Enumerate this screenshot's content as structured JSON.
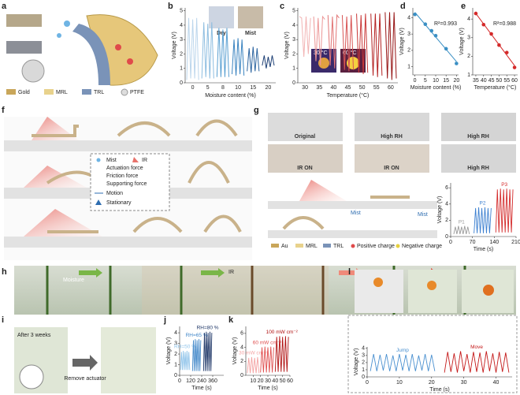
{
  "panel_letters": [
    "a",
    "b",
    "c",
    "d",
    "e",
    "f",
    "g",
    "h",
    "i",
    "j",
    "k",
    "l"
  ],
  "a": {
    "legend": [
      "Gold",
      "MRL",
      "TRL",
      "PTFE"
    ]
  },
  "b_photos": [
    "Dry",
    "Mist"
  ],
  "c_photos": [
    "30 °C",
    "60 °C"
  ],
  "f": {
    "legend": [
      "Mist",
      "IR",
      "Actuation force",
      "Friction force",
      "Supporting force",
      "Motion",
      "Stationary"
    ]
  },
  "g": {
    "photos": [
      "Original",
      "High RH",
      "High RH",
      "IR ON",
      "IR ON",
      "High RH"
    ],
    "mist": [
      "Mist",
      "Mist"
    ],
    "legend": [
      "Au",
      "MRL",
      "TRL",
      "Positive charge",
      "Negative charge"
    ]
  },
  "h": {
    "labels": [
      "Moisture",
      "IR"
    ]
  },
  "i": {
    "labels": [
      "After 3 weeks",
      "Remove actuator"
    ]
  },
  "chart_data": [
    {
      "type": "line",
      "ylabel": "Voltage (V)",
      "xlabel": "Moisture content (%)",
      "categories": [
        "0",
        "5",
        "8",
        "10",
        "15",
        "20"
      ],
      "groups": [
        [
          0.2,
          4.5,
          0.3,
          4.4,
          0.3,
          4.5,
          0.2
        ],
        [
          0.3,
          4.2,
          0.4,
          4.1,
          0.3,
          4.2,
          0.3
        ],
        [
          0.4,
          3.8,
          0.4,
          3.7,
          0.4,
          3.8,
          0.4
        ],
        [
          0.6,
          3.0,
          0.5,
          3.1,
          0.6,
          3.0,
          0.5
        ],
        [
          0.8,
          2.4,
          0.7,
          2.5,
          0.8,
          2.4,
          0.8
        ],
        [
          1.2,
          1.9,
          1.0,
          1.8,
          1.1,
          1.9,
          1.2
        ]
      ],
      "group_colors": [
        "#bcd6ec",
        "#8dbde0",
        "#5aa0d2",
        "#3b84c0",
        "#2b64a0",
        "#1d3f75"
      ],
      "ylim": [
        0,
        5.2
      ],
      "yticks": [
        0,
        1,
        2,
        3,
        4,
        5
      ]
    },
    {
      "type": "line",
      "ylabel": "Voltage (V)",
      "xlabel": "Temperature (°C)",
      "categories": [
        "30",
        "35",
        "40",
        "45",
        "50",
        "55",
        "60"
      ],
      "groups": [
        [
          4.6,
          4.5,
          1.8,
          4.6,
          2.0,
          4.5
        ],
        [
          4.6,
          1.5,
          4.5,
          1.2,
          4.6,
          4.4
        ],
        [
          4.7,
          1.2,
          4.6,
          1.0,
          4.7,
          4.5
        ],
        [
          4.7,
          0.9,
          4.6,
          0.8,
          4.7,
          0.9
        ],
        [
          4.8,
          0.7,
          4.7,
          0.6,
          4.8,
          0.7
        ],
        [
          4.8,
          0.5,
          4.8,
          0.4,
          4.8,
          0.5
        ],
        [
          4.9,
          0.3,
          4.9,
          0.2,
          4.9,
          0.3
        ]
      ],
      "group_colors": [
        "#f2b3b3",
        "#ec9696",
        "#e27676",
        "#d85555",
        "#c93838",
        "#b42222",
        "#961414"
      ],
      "ylim": [
        0,
        5.2
      ],
      "yticks": [
        0,
        1,
        2,
        3,
        4,
        5
      ]
    },
    {
      "type": "scatter",
      "ylabel": "Voltage (V)",
      "xlabel": "Moisture content (%)",
      "annotation": "R²=0.993",
      "x": [
        0,
        5,
        8,
        10,
        15,
        20
      ],
      "values": [
        4.2,
        3.6,
        3.2,
        2.9,
        2.1,
        1.2
      ],
      "color": "#3a8fc4",
      "xlim": [
        -1,
        21
      ],
      "xticks": [
        0,
        5,
        10,
        15,
        20
      ],
      "ylim": [
        0.5,
        4.6
      ],
      "yticks": [
        1,
        2,
        3,
        4
      ]
    },
    {
      "type": "scatter",
      "ylabel": "Voltage (V)",
      "xlabel": "Temperature (°C)",
      "annotation": "R²=0.988",
      "x": [
        35,
        40,
        45,
        50,
        55,
        60
      ],
      "values": [
        4.3,
        3.7,
        3.2,
        2.6,
        2.2,
        1.4
      ],
      "color": "#d42a2a",
      "xlim": [
        33,
        62
      ],
      "xticks": [
        35,
        40,
        45,
        50,
        55,
        60
      ],
      "ylim": [
        1,
        4.6
      ],
      "yticks": [
        1,
        2,
        3,
        4
      ]
    },
    {
      "type": "line",
      "ylabel": "Voltage (V)",
      "xlabel": "Time (s)",
      "series": [
        {
          "name": "P1",
          "color": "#9a9a9a",
          "x": [
            10,
            15,
            20,
            25,
            30,
            35,
            40,
            45,
            50,
            55,
            60
          ],
          "values": [
            0.3,
            1.2,
            0.3,
            1.3,
            0.3,
            1.2,
            0.3,
            1.3,
            0.3,
            1.2,
            0.3
          ]
        },
        {
          "name": "P2",
          "color": "#3b7fd0",
          "x": [
            75,
            80,
            85,
            90,
            95,
            100,
            105,
            110,
            115,
            120,
            125,
            130
          ],
          "values": [
            0.4,
            3.5,
            0.4,
            3.6,
            0.4,
            3.5,
            0.4,
            3.6,
            0.4,
            3.5,
            0.4,
            3.5
          ]
        },
        {
          "name": "P3",
          "color": "#d42a2a",
          "x": [
            145,
            150,
            155,
            160,
            165,
            170,
            175,
            180,
            185,
            190,
            195,
            200
          ],
          "values": [
            0.5,
            5.8,
            0.5,
            5.9,
            0.5,
            5.8,
            0.5,
            5.9,
            0.5,
            5.8,
            0.5,
            5.8
          ]
        }
      ],
      "xlim": [
        0,
        210
      ],
      "xticks": [
        0,
        70,
        140,
        210
      ],
      "ylim": [
        0,
        6.6
      ],
      "yticks": [
        0,
        2,
        4,
        6
      ]
    },
    {
      "type": "line",
      "ylabel": "Voltage (V)",
      "xlabel": "Time (s)",
      "series": [
        {
          "name": "RH=50 %",
          "color": "#8ec3ea",
          "x": [
            10,
            20,
            30,
            40,
            50,
            60,
            70,
            80,
            90,
            100,
            110
          ],
          "values": [
            0.5,
            2.2,
            0.5,
            2.3,
            0.5,
            2.2,
            0.5,
            2.3,
            0.5,
            2.2,
            0.5
          ]
        },
        {
          "name": "RH=65 %",
          "color": "#3f86c8",
          "x": [
            140,
            150,
            160,
            170,
            180,
            190,
            200,
            210,
            220,
            230
          ],
          "values": [
            0.4,
            3.3,
            0.4,
            3.4,
            0.4,
            3.3,
            0.4,
            3.4,
            0.4,
            3.3
          ]
        },
        {
          "name": "RH=80 %",
          "color": "#1d3566",
          "x": [
            260,
            270,
            280,
            290,
            300,
            310,
            320,
            330,
            340,
            350
          ],
          "values": [
            0.4,
            4.0,
            0.4,
            4.1,
            0.4,
            4.0,
            0.4,
            4.1,
            0.4,
            4.0
          ]
        }
      ],
      "xlim": [
        0,
        480
      ],
      "xticks": [
        0,
        120,
        240,
        360
      ],
      "ylim": [
        0,
        4.6
      ],
      "yticks": [
        0,
        1,
        2,
        3,
        4
      ]
    },
    {
      "type": "line",
      "ylabel": "Voltage (V)",
      "xlabel": "Time (s)",
      "series": [
        {
          "name": "30 mW cm⁻²",
          "color": "#f4a3a3",
          "x": [
            2,
            4,
            6,
            8,
            10,
            12,
            14,
            16,
            18
          ],
          "values": [
            0.3,
            2.5,
            0.3,
            2.6,
            0.3,
            2.5,
            0.3,
            2.6,
            0.3
          ]
        },
        {
          "name": "60 mW cm⁻²",
          "color": "#e05050",
          "x": [
            20,
            22,
            24,
            26,
            28,
            30,
            32,
            34,
            36,
            38
          ],
          "values": [
            0.4,
            4.0,
            0.4,
            4.1,
            0.4,
            4.0,
            0.4,
            4.1,
            0.4,
            4.0
          ]
        },
        {
          "name": "100 mW cm⁻²",
          "color": "#b01010",
          "x": [
            40,
            42,
            44,
            46,
            48,
            50,
            52,
            54,
            56,
            58
          ],
          "values": [
            0.5,
            5.5,
            0.5,
            5.6,
            0.5,
            5.5,
            0.5,
            5.6,
            0.5,
            5.5
          ]
        }
      ],
      "xlim": [
        0,
        60
      ],
      "xticks": [
        10,
        20,
        30,
        40,
        50,
        60
      ],
      "ylim": [
        0,
        7
      ],
      "yticks": [
        0,
        2,
        4,
        6
      ]
    },
    {
      "type": "line",
      "ylabel": "Voltage (V)",
      "xlabel": "Time (s)",
      "series": [
        {
          "name": "Jump",
          "color": "#4a90d0",
          "x": [
            1,
            2,
            3,
            4,
            5,
            6,
            7,
            8,
            9,
            10,
            11,
            12,
            13,
            14,
            15,
            16,
            17,
            18,
            19,
            20,
            21
          ],
          "values": [
            0.8,
            3.2,
            0.8,
            3.1,
            0.9,
            3.2,
            0.8,
            3.0,
            0.8,
            3.2,
            0.9,
            3.1,
            0.8,
            3.2,
            0.8,
            3.0,
            0.9,
            3.2,
            0.8,
            3.1,
            0.8
          ]
        },
        {
          "name": "Move",
          "color": "#c41818",
          "x": [
            24,
            25,
            26,
            27,
            28,
            29,
            30,
            31,
            32,
            33,
            34,
            35,
            36,
            37,
            38,
            39,
            40,
            41,
            42,
            43,
            44
          ],
          "values": [
            0.6,
            3.5,
            0.7,
            3.3,
            0.6,
            3.6,
            0.8,
            3.2,
            0.6,
            3.5,
            0.7,
            3.4,
            0.6,
            3.6,
            0.8,
            3.3,
            0.6,
            3.5,
            0.7,
            3.4,
            0.6
          ]
        }
      ],
      "xlim": [
        0,
        45
      ],
      "xticks": [
        0,
        10,
        20,
        30,
        40
      ],
      "ylim": [
        0,
        4.2
      ],
      "yticks": [
        0,
        1,
        2,
        3,
        4
      ]
    }
  ]
}
